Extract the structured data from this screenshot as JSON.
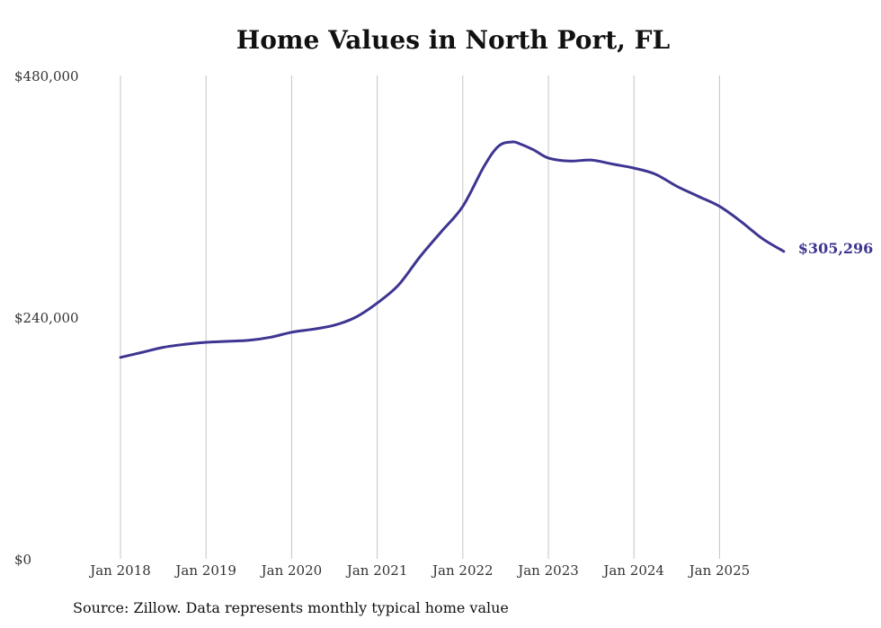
{
  "chart_data": {
    "type": "line",
    "title": "Home Values in North Port, FL",
    "source": "Source: Zillow. Data represents monthly typical home value",
    "xlabel": "",
    "ylabel": "",
    "ylim": [
      0,
      480000
    ],
    "y_ticks": [
      0,
      240000,
      480000
    ],
    "y_tick_labels": [
      "$0",
      "$240,000",
      "$480,000"
    ],
    "xlim": [
      2018.0,
      2025.75
    ],
    "x_ticks": [
      2018,
      2019,
      2020,
      2021,
      2022,
      2023,
      2024,
      2025
    ],
    "x_tick_labels": [
      "Jan 2018",
      "Jan 2019",
      "Jan 2020",
      "Jan 2021",
      "Jan 2022",
      "Jan 2023",
      "Jan 2024",
      "Jan 2025"
    ],
    "grid": "vertical",
    "colors": {
      "line": "#3d3591",
      "grid": "#c4c4c4",
      "text": "#333333"
    },
    "end_label": "$305,296",
    "series": [
      {
        "name": "Typical home value",
        "x": [
          2018.0,
          2018.25,
          2018.5,
          2018.75,
          2019.0,
          2019.25,
          2019.5,
          2019.75,
          2020.0,
          2020.25,
          2020.5,
          2020.75,
          2021.0,
          2021.25,
          2021.5,
          2021.75,
          2022.0,
          2022.25,
          2022.42,
          2022.58,
          2022.67,
          2022.83,
          2023.0,
          2023.25,
          2023.5,
          2023.75,
          2024.0,
          2024.25,
          2024.5,
          2024.75,
          2025.0,
          2025.25,
          2025.5,
          2025.75
        ],
        "y": [
          200000,
          205000,
          210000,
          213000,
          215000,
          216000,
          217000,
          220000,
          225000,
          228000,
          232000,
          240000,
          254000,
          272000,
          300000,
          325000,
          350000,
          390000,
          410000,
          414000,
          412000,
          406000,
          398000,
          395000,
          396000,
          392000,
          388000,
          382000,
          370000,
          360000,
          350000,
          335000,
          318000,
          305296
        ]
      }
    ]
  }
}
